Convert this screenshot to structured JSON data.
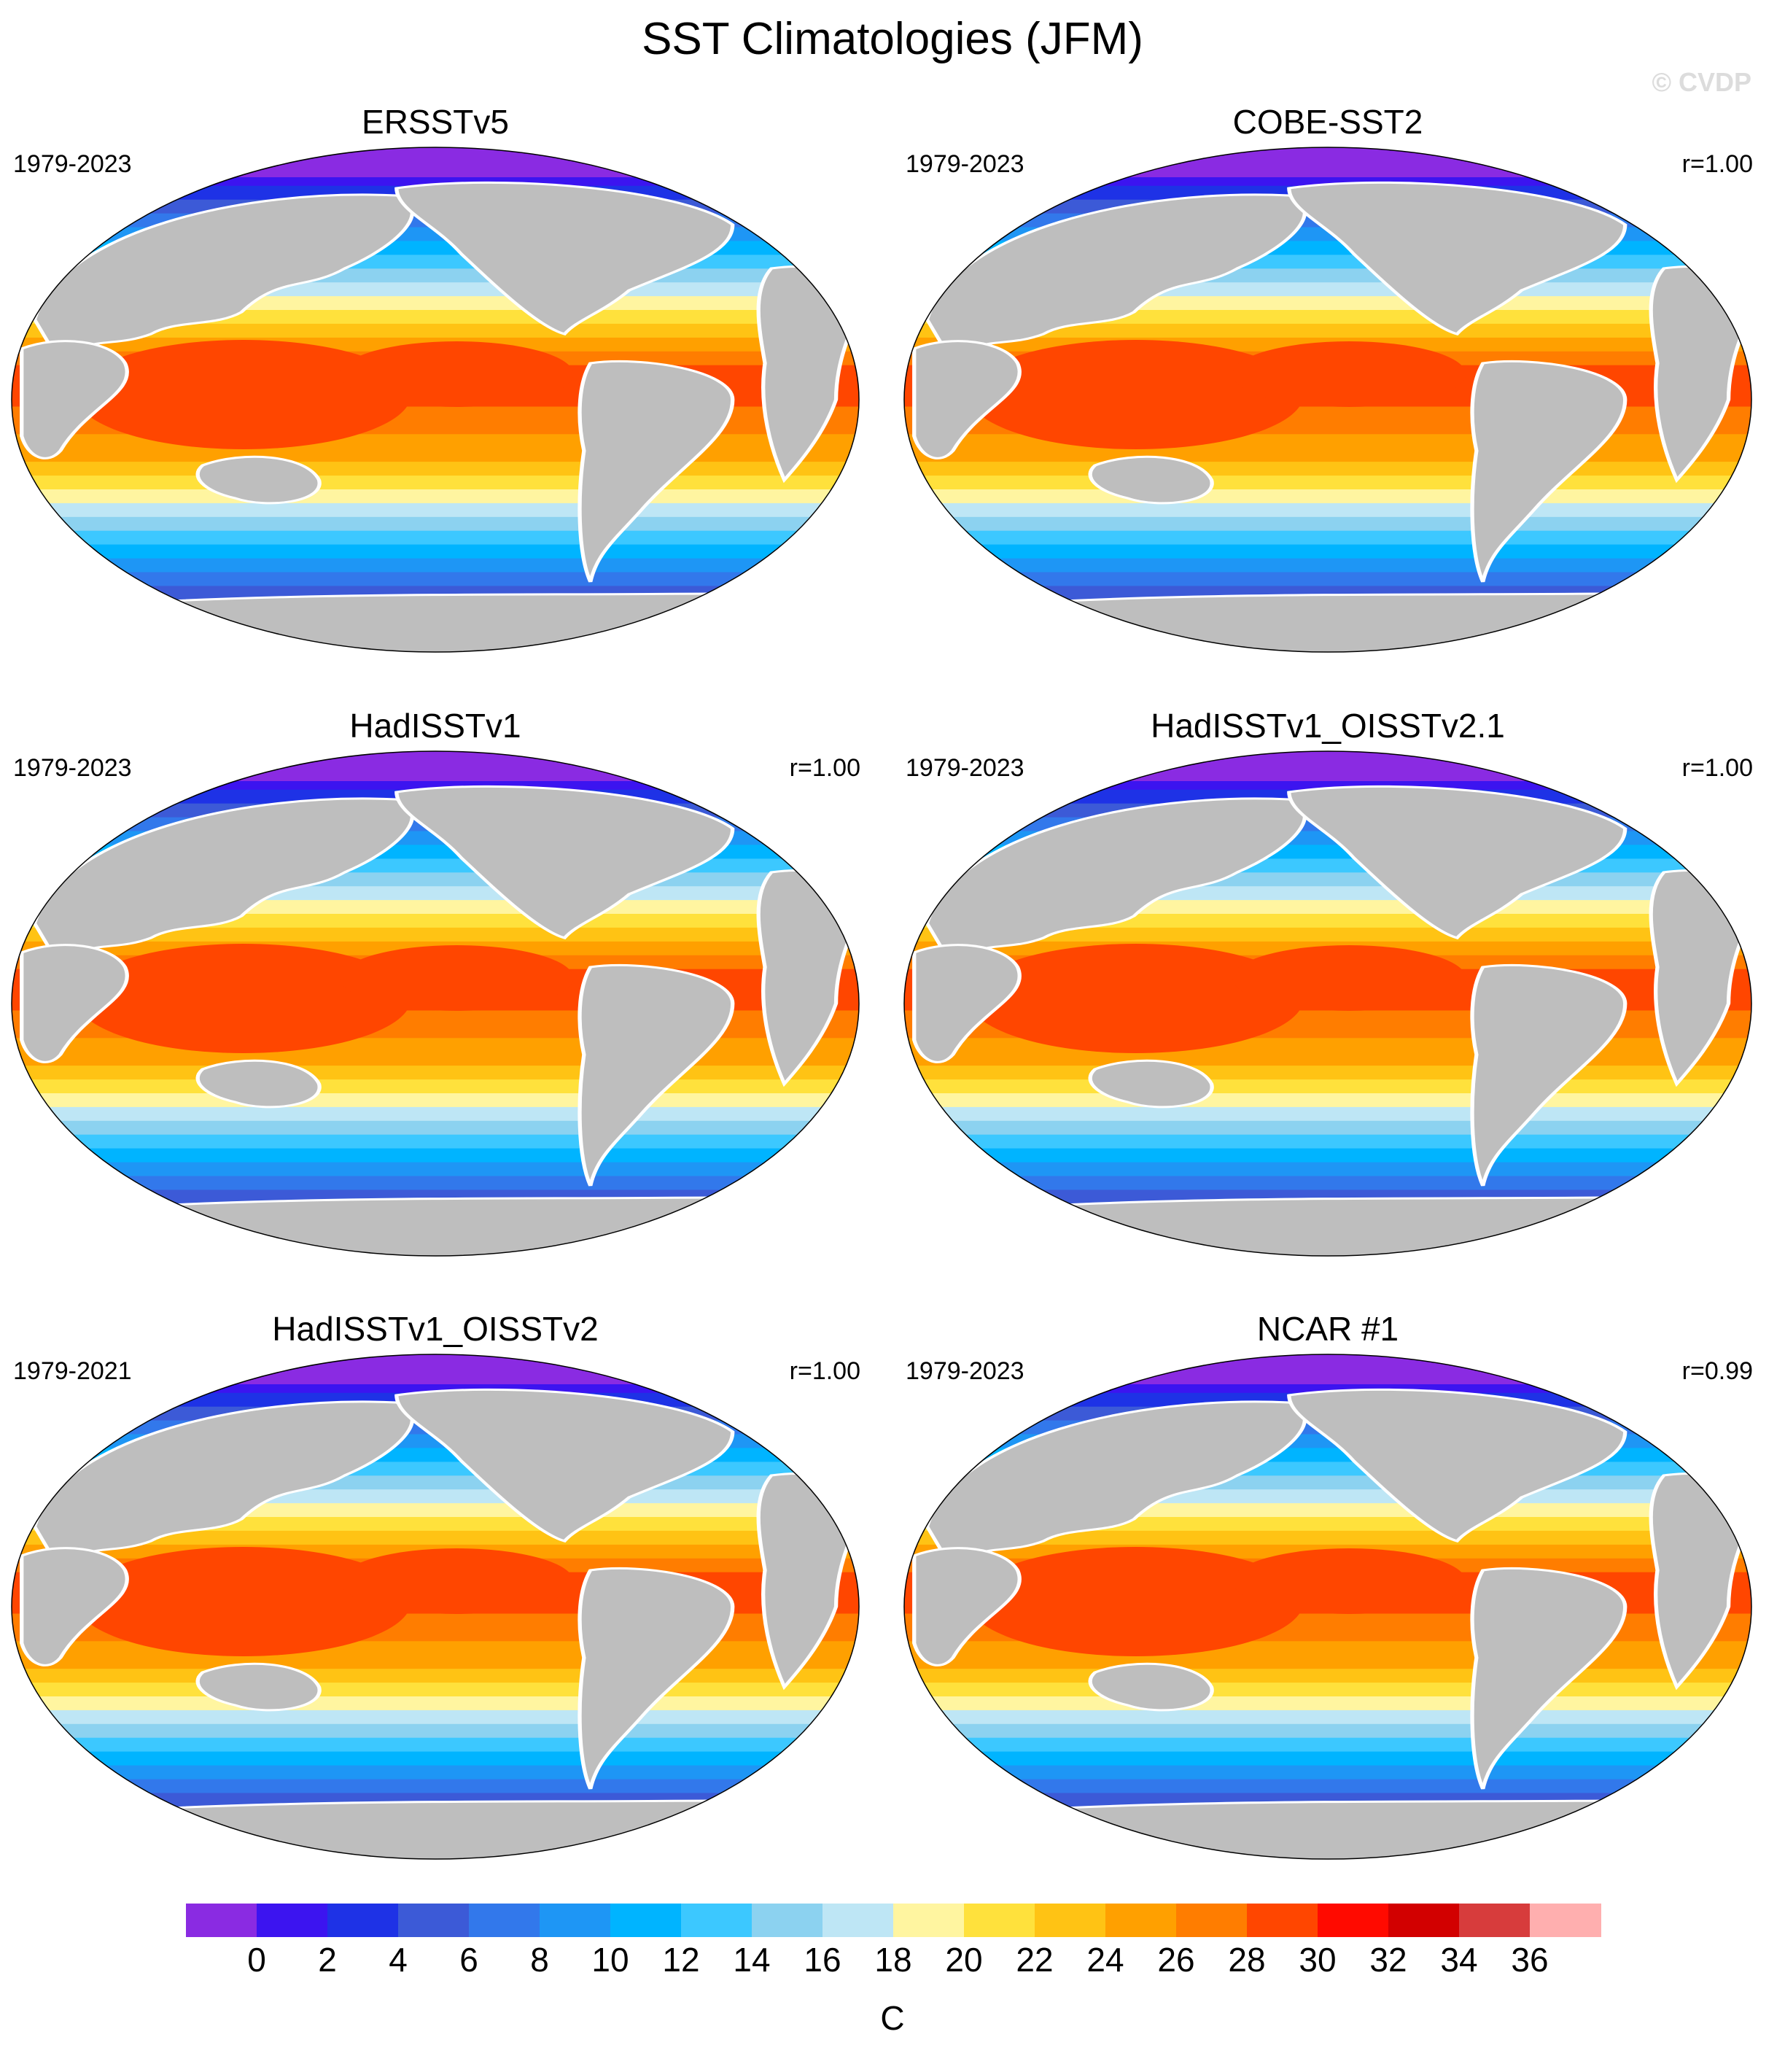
{
  "figure": {
    "title": "SST Climatologies (JFM)",
    "watermark": "© CVDP",
    "units": "C"
  },
  "panels": [
    {
      "name": "ERSSTv5",
      "period": "1979-2023",
      "r": ""
    },
    {
      "name": "COBE-SST2",
      "period": "1979-2023",
      "r": "r=1.00"
    },
    {
      "name": "HadISSTv1",
      "period": "1979-2023",
      "r": "r=1.00"
    },
    {
      "name": "HadISSTv1_OISSTv2.1",
      "period": "1979-2023",
      "r": "r=1.00"
    },
    {
      "name": "HadISSTv1_OISSTv2",
      "period": "1979-2021",
      "r": "r=1.00"
    },
    {
      "name": "NCAR #1",
      "period": "1979-2023",
      "r": "r=0.99"
    }
  ],
  "colorbar": {
    "labels": [
      "0",
      "2",
      "4",
      "6",
      "8",
      "10",
      "12",
      "14",
      "16",
      "18",
      "20",
      "22",
      "24",
      "26",
      "28",
      "30",
      "32",
      "34",
      "36"
    ],
    "colors": [
      "#8a2be2",
      "#3c14f0",
      "#1e32e6",
      "#3c5ad7",
      "#3278eb",
      "#1e96f5",
      "#00b4ff",
      "#3cc8ff",
      "#8cd2f0",
      "#bee6f5",
      "#fff5a0",
      "#ffe13c",
      "#ffc314",
      "#ffa000",
      "#ff7d00",
      "#ff4600",
      "#ff0a00",
      "#d20000",
      "#d73c3c",
      "#ffafaf"
    ]
  },
  "map_style": {
    "land": "#bebebe",
    "outline": "#000000",
    "ice_free_white": "#ffffff"
  }
}
